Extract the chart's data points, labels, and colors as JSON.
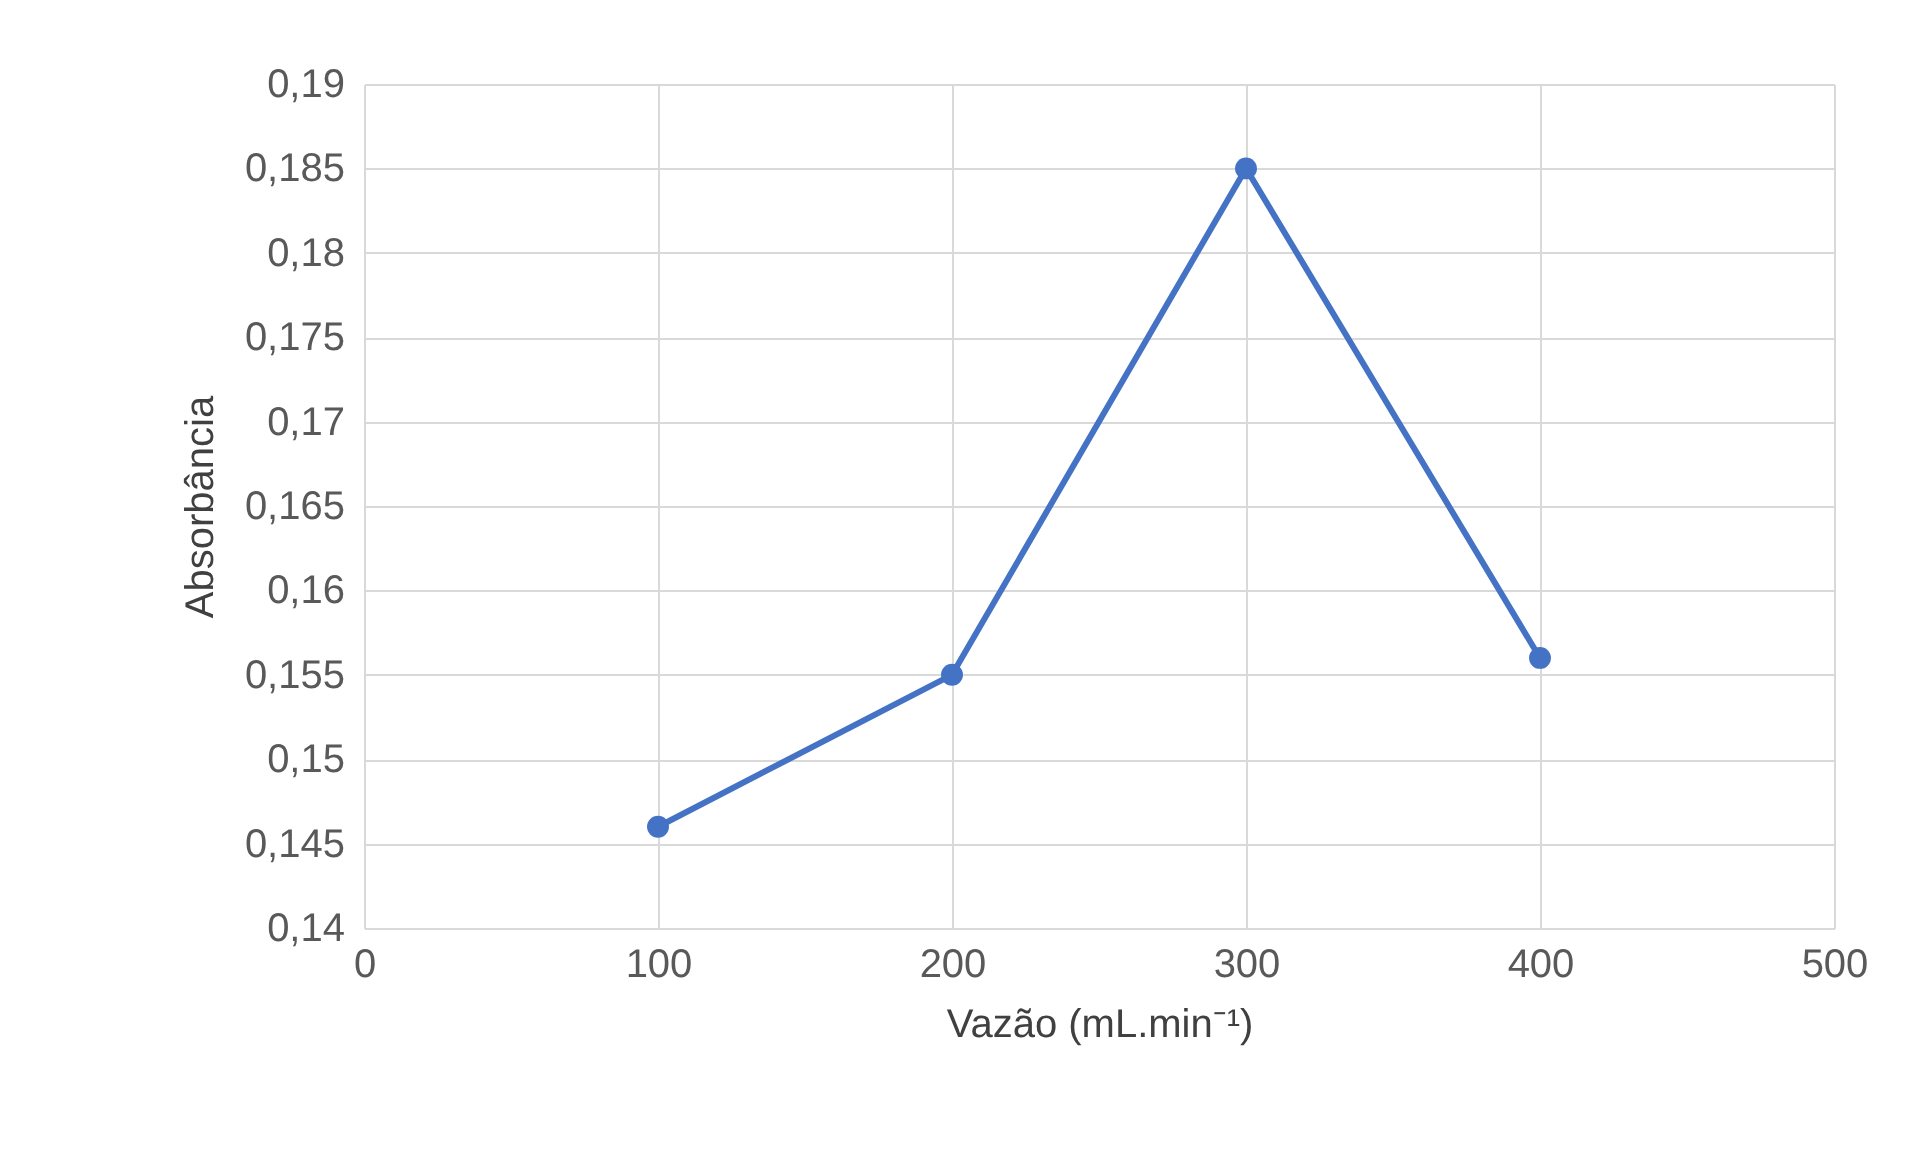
{
  "chart_data": {
    "type": "line",
    "xlabel": "Vazão (mL.min⁻¹)",
    "ylabel": "Absorbância",
    "x": [
      100,
      200,
      300,
      400
    ],
    "series": [
      {
        "color": "#4472c4",
        "values": [
          0.146,
          0.155,
          0.185,
          0.156
        ]
      }
    ],
    "xlim": [
      0,
      500
    ],
    "xticks": [
      0,
      100,
      200,
      300,
      400,
      500
    ],
    "ylim": [
      0.14,
      0.19
    ],
    "yticks": [
      {
        "value": 0.14,
        "label": "0,14"
      },
      {
        "value": 0.145,
        "label": "0,145"
      },
      {
        "value": 0.15,
        "label": "0,15"
      },
      {
        "value": 0.155,
        "label": "0,155"
      },
      {
        "value": 0.16,
        "label": "0,16"
      },
      {
        "value": 0.165,
        "label": "0,165"
      },
      {
        "value": 0.17,
        "label": "0,17"
      },
      {
        "value": 0.175,
        "label": "0,175"
      },
      {
        "value": 0.18,
        "label": "0,18"
      },
      {
        "value": 0.185,
        "label": "0,185"
      },
      {
        "value": 0.19,
        "label": "0,19"
      }
    ],
    "grid": true,
    "marker": "circle",
    "line_style": "solid"
  }
}
